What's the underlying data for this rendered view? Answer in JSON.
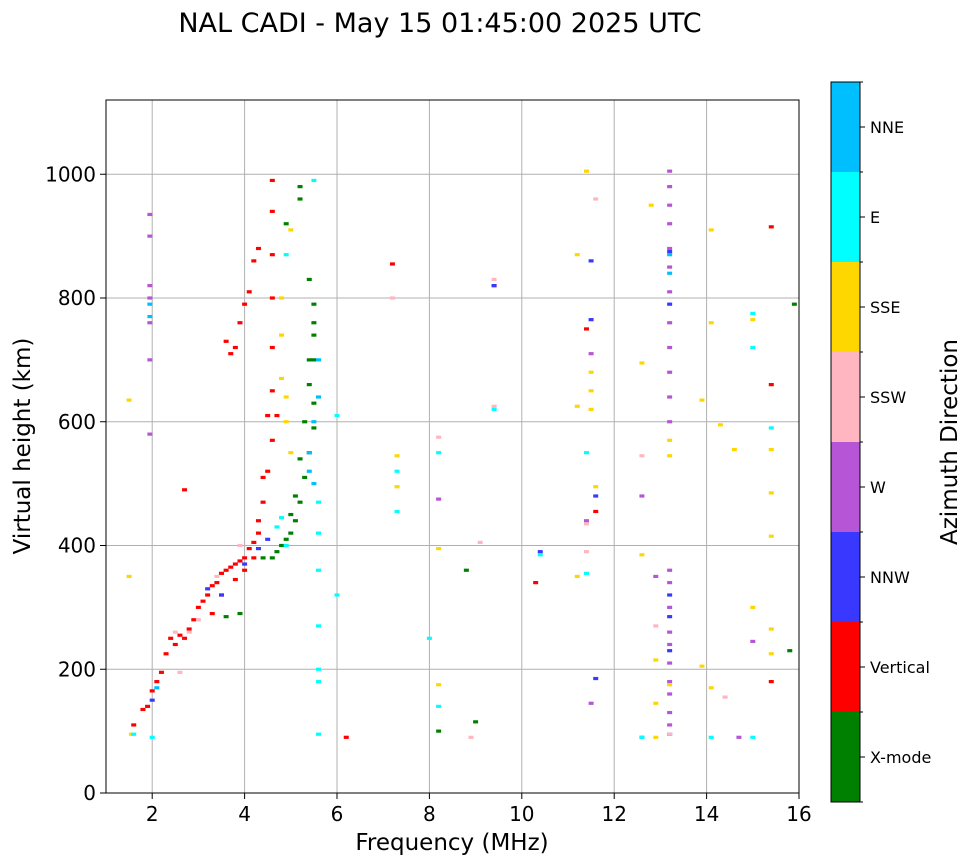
{
  "chart_data": {
    "type": "scatter",
    "title": "NAL CADI - May 15 01:45:00 2025 UTC",
    "xlabel": "Frequency (MHz)",
    "ylabel": "Virtual height (km)",
    "xlim": [
      1,
      16
    ],
    "ylim": [
      0,
      1120
    ],
    "xticks": [
      2,
      4,
      6,
      8,
      10,
      12,
      14,
      16
    ],
    "yticks": [
      0,
      200,
      400,
      600,
      800,
      1000
    ],
    "grid": true,
    "colorbar": {
      "label": "Azimuth Direction",
      "categories": [
        {
          "name": "X-mode",
          "color": "#008000"
        },
        {
          "name": "Vertical",
          "color": "#ff0000"
        },
        {
          "name": "NNW",
          "color": "#3838ff"
        },
        {
          "name": "W",
          "color": "#b655d5"
        },
        {
          "name": "SSW",
          "color": "#ffb6c1"
        },
        {
          "name": "SSE",
          "color": "#ffd700"
        },
        {
          "name": "E",
          "color": "#00ffff"
        },
        {
          "name": "NNE",
          "color": "#00bfff"
        }
      ]
    },
    "series": [
      {
        "name": "Vertical",
        "points": [
          [
            1.6,
            110
          ],
          [
            1.8,
            135
          ],
          [
            1.9,
            140
          ],
          [
            2.0,
            165
          ],
          [
            2.1,
            180
          ],
          [
            2.2,
            195
          ],
          [
            2.3,
            225
          ],
          [
            2.4,
            250
          ],
          [
            2.5,
            240
          ],
          [
            2.6,
            255
          ],
          [
            2.7,
            250
          ],
          [
            2.8,
            265
          ],
          [
            2.9,
            280
          ],
          [
            3.0,
            300
          ],
          [
            3.1,
            310
          ],
          [
            3.2,
            320
          ],
          [
            3.3,
            335
          ],
          [
            3.4,
            340
          ],
          [
            3.5,
            355
          ],
          [
            3.6,
            360
          ],
          [
            3.7,
            365
          ],
          [
            3.8,
            370
          ],
          [
            3.9,
            375
          ],
          [
            4.0,
            380
          ],
          [
            4.1,
            395
          ],
          [
            4.2,
            405
          ],
          [
            4.3,
            440
          ],
          [
            4.4,
            470
          ],
          [
            4.5,
            520
          ],
          [
            4.6,
            570
          ],
          [
            4.7,
            610
          ],
          [
            3.3,
            290
          ],
          [
            3.5,
            320
          ],
          [
            3.8,
            345
          ],
          [
            4.0,
            360
          ],
          [
            4.2,
            380
          ],
          [
            4.3,
            420
          ],
          [
            4.4,
            510
          ],
          [
            4.5,
            610
          ],
          [
            4.6,
            650
          ],
          [
            4.6,
            720
          ],
          [
            4.6,
            800
          ],
          [
            4.6,
            870
          ],
          [
            4.6,
            940
          ],
          [
            4.6,
            990
          ],
          [
            3.6,
            730
          ],
          [
            3.7,
            710
          ],
          [
            3.8,
            720
          ],
          [
            3.9,
            760
          ],
          [
            4.0,
            790
          ],
          [
            4.1,
            810
          ],
          [
            4.2,
            860
          ],
          [
            4.3,
            880
          ],
          [
            2.7,
            490
          ],
          [
            6.2,
            90
          ],
          [
            7.2,
            855
          ],
          [
            9.4,
            820
          ],
          [
            10.3,
            340
          ],
          [
            11.4,
            750
          ],
          [
            11.6,
            455
          ],
          [
            15.4,
            915
          ],
          [
            15.4,
            660
          ],
          [
            15.4,
            180
          ]
        ]
      },
      {
        "name": "X-mode",
        "points": [
          [
            4.4,
            380
          ],
          [
            4.6,
            380
          ],
          [
            4.7,
            390
          ],
          [
            4.8,
            400
          ],
          [
            4.9,
            410
          ],
          [
            5.0,
            420
          ],
          [
            5.1,
            440
          ],
          [
            5.2,
            470
          ],
          [
            5.3,
            510
          ],
          [
            5.4,
            550
          ],
          [
            5.5,
            590
          ],
          [
            5.5,
            630
          ],
          [
            5.4,
            660
          ],
          [
            5.5,
            700
          ],
          [
            5.5,
            740
          ],
          [
            5.5,
            790
          ],
          [
            5.4,
            830
          ],
          [
            5.2,
            960
          ],
          [
            5.2,
            980
          ],
          [
            5.0,
            450
          ],
          [
            5.1,
            480
          ],
          [
            5.2,
            540
          ],
          [
            5.3,
            600
          ],
          [
            5.4,
            700
          ],
          [
            5.5,
            760
          ],
          [
            4.9,
            920
          ],
          [
            3.6,
            285
          ],
          [
            3.9,
            290
          ],
          [
            8.8,
            360
          ],
          [
            8.2,
            100
          ],
          [
            9.0,
            115
          ],
          [
            15.8,
            230
          ],
          [
            15.9,
            790
          ]
        ]
      },
      {
        "name": "NNW",
        "points": [
          [
            2.0,
            150
          ],
          [
            3.2,
            330
          ],
          [
            3.5,
            320
          ],
          [
            4.0,
            370
          ],
          [
            4.3,
            395
          ],
          [
            4.5,
            410
          ],
          [
            9.4,
            820
          ],
          [
            10.4,
            390
          ],
          [
            11.5,
            765
          ],
          [
            11.5,
            860
          ],
          [
            11.6,
            480
          ],
          [
            11.6,
            185
          ],
          [
            13.2,
            875
          ],
          [
            13.2,
            790
          ],
          [
            13.2,
            285
          ],
          [
            13.2,
            320
          ],
          [
            13.2,
            230
          ],
          [
            13.2,
            95
          ]
        ]
      },
      {
        "name": "W",
        "points": [
          [
            1.95,
            935
          ],
          [
            1.95,
            900
          ],
          [
            1.95,
            820
          ],
          [
            1.95,
            800
          ],
          [
            1.95,
            760
          ],
          [
            1.95,
            700
          ],
          [
            1.95,
            580
          ],
          [
            13.2,
            1005
          ],
          [
            13.2,
            980
          ],
          [
            13.2,
            950
          ],
          [
            13.2,
            920
          ],
          [
            13.2,
            880
          ],
          [
            13.2,
            850
          ],
          [
            13.2,
            810
          ],
          [
            13.2,
            760
          ],
          [
            13.2,
            720
          ],
          [
            13.2,
            680
          ],
          [
            13.2,
            640
          ],
          [
            13.2,
            600
          ],
          [
            13.2,
            360
          ],
          [
            13.2,
            340
          ],
          [
            13.2,
            300
          ],
          [
            13.2,
            260
          ],
          [
            13.2,
            240
          ],
          [
            13.2,
            210
          ],
          [
            13.2,
            180
          ],
          [
            13.2,
            160
          ],
          [
            13.2,
            130
          ],
          [
            13.2,
            110
          ],
          [
            12.9,
            350
          ],
          [
            12.6,
            480
          ],
          [
            12.6,
            90
          ],
          [
            8.2,
            475
          ],
          [
            11.4,
            440
          ],
          [
            11.5,
            710
          ],
          [
            11.5,
            145
          ],
          [
            14.7,
            90
          ],
          [
            15.0,
            245
          ]
        ]
      },
      {
        "name": "SSW",
        "points": [
          [
            2.5,
            260
          ],
          [
            2.8,
            260
          ],
          [
            3.0,
            280
          ],
          [
            3.4,
            350
          ],
          [
            3.9,
            400
          ],
          [
            7.2,
            800
          ],
          [
            8.2,
            575
          ],
          [
            9.4,
            830
          ],
          [
            9.4,
            625
          ],
          [
            11.4,
            390
          ],
          [
            11.4,
            435
          ],
          [
            11.6,
            960
          ],
          [
            12.6,
            545
          ],
          [
            12.9,
            270
          ],
          [
            13.2,
            95
          ],
          [
            14.4,
            155
          ],
          [
            8.9,
            90
          ],
          [
            9.1,
            405
          ],
          [
            2.6,
            195
          ]
        ]
      },
      {
        "name": "SSE",
        "points": [
          [
            1.5,
            635
          ],
          [
            1.5,
            350
          ],
          [
            1.55,
            95
          ],
          [
            4.8,
            800
          ],
          [
            4.8,
            740
          ],
          [
            4.8,
            670
          ],
          [
            4.9,
            600
          ],
          [
            5.0,
            550
          ],
          [
            5.0,
            910
          ],
          [
            4.9,
            640
          ],
          [
            7.3,
            545
          ],
          [
            7.3,
            495
          ],
          [
            8.2,
            395
          ],
          [
            8.2,
            175
          ],
          [
            11.2,
            625
          ],
          [
            11.2,
            350
          ],
          [
            11.4,
            1005
          ],
          [
            11.5,
            680
          ],
          [
            11.5,
            650
          ],
          [
            11.5,
            620
          ],
          [
            11.6,
            495
          ],
          [
            12.6,
            695
          ],
          [
            12.6,
            385
          ],
          [
            12.9,
            215
          ],
          [
            12.9,
            145
          ],
          [
            12.9,
            90
          ],
          [
            13.2,
            570
          ],
          [
            13.2,
            545
          ],
          [
            13.2,
            175
          ],
          [
            13.9,
            635
          ],
          [
            13.9,
            205
          ],
          [
            14.1,
            910
          ],
          [
            14.1,
            760
          ],
          [
            14.1,
            170
          ],
          [
            14.3,
            595
          ],
          [
            14.6,
            555
          ],
          [
            15.0,
            765
          ],
          [
            15.0,
            300
          ],
          [
            15.4,
            555
          ],
          [
            15.4,
            485
          ],
          [
            15.4,
            415
          ],
          [
            15.4,
            265
          ],
          [
            15.4,
            225
          ],
          [
            12.8,
            950
          ],
          [
            11.2,
            870
          ]
        ]
      },
      {
        "name": "E",
        "points": [
          [
            1.6,
            95
          ],
          [
            2.0,
            90
          ],
          [
            4.7,
            430
          ],
          [
            4.8,
            445
          ],
          [
            4.9,
            400
          ],
          [
            5.6,
            470
          ],
          [
            5.6,
            420
          ],
          [
            5.6,
            360
          ],
          [
            5.6,
            200
          ],
          [
            5.6,
            180
          ],
          [
            5.6,
            270
          ],
          [
            5.6,
            95
          ],
          [
            6.0,
            610
          ],
          [
            6.0,
            320
          ],
          [
            7.3,
            520
          ],
          [
            7.3,
            455
          ],
          [
            8.0,
            250
          ],
          [
            8.2,
            140
          ],
          [
            8.2,
            550
          ],
          [
            9.4,
            620
          ],
          [
            10.4,
            385
          ],
          [
            11.4,
            550
          ],
          [
            11.4,
            355
          ],
          [
            12.6,
            90
          ],
          [
            14.1,
            90
          ],
          [
            15.0,
            775
          ],
          [
            15.0,
            720
          ],
          [
            15.0,
            90
          ],
          [
            15.4,
            590
          ],
          [
            4.9,
            870
          ],
          [
            5.5,
            990
          ]
        ]
      },
      {
        "name": "NNE",
        "points": [
          [
            5.4,
            550
          ],
          [
            5.4,
            520
          ],
          [
            5.5,
            500
          ],
          [
            5.5,
            600
          ],
          [
            5.6,
            640
          ],
          [
            5.6,
            700
          ],
          [
            1.95,
            790
          ],
          [
            1.95,
            770
          ],
          [
            13.2,
            870
          ],
          [
            13.2,
            840
          ],
          [
            2.1,
            170
          ]
        ]
      }
    ]
  }
}
